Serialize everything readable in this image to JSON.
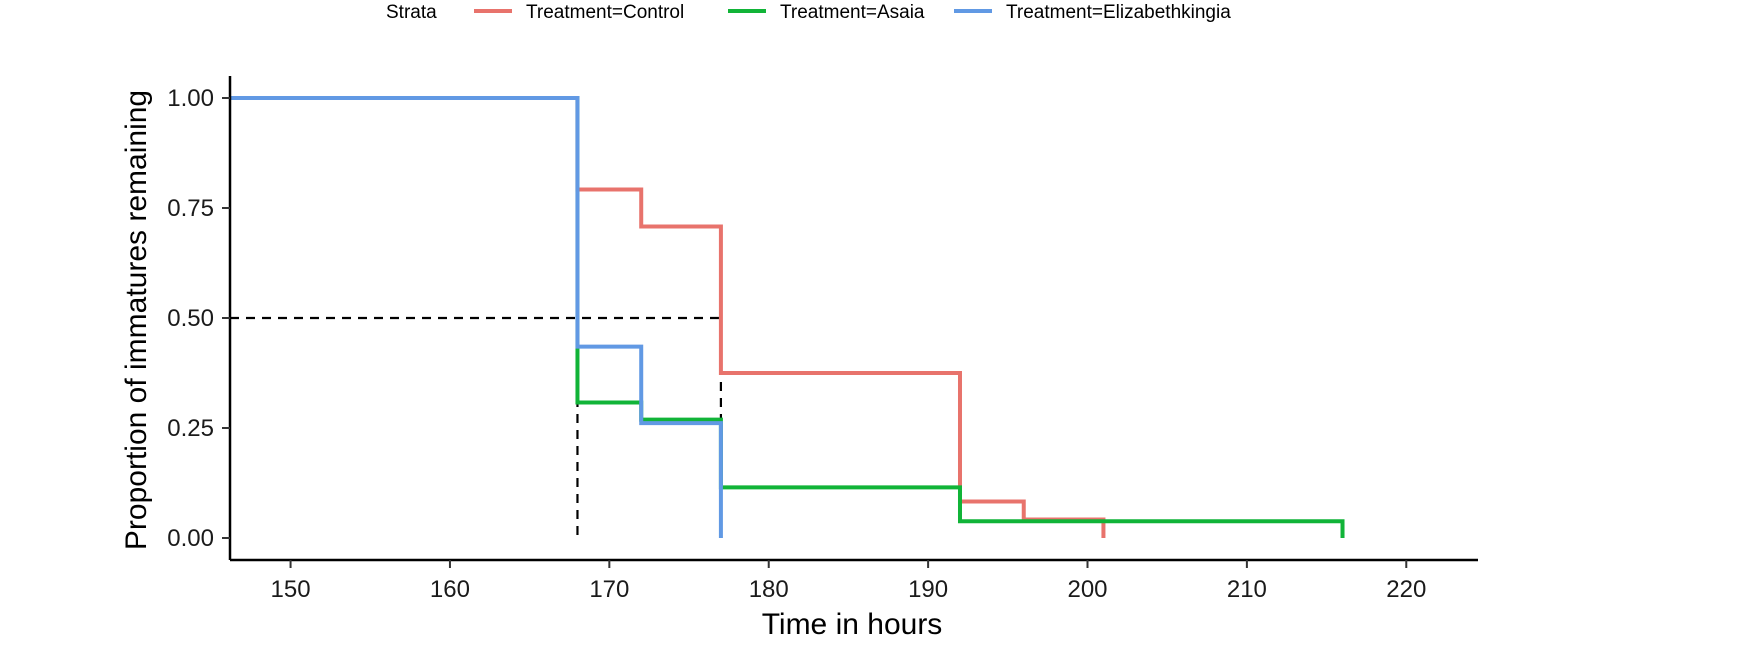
{
  "chart_data": {
    "type": "line",
    "xlabel": "Time in hours",
    "ylabel": "Proportion of immatures remaining",
    "xlim": [
      146.2,
      224.5
    ],
    "ylim": [
      -0.05,
      1.05
    ],
    "x_ticks": [
      150,
      160,
      170,
      180,
      190,
      200,
      210,
      220
    ],
    "y_ticks": [
      0,
      0.25,
      0.5,
      0.75,
      1.0
    ],
    "x_tick_labels": [
      "150",
      "160",
      "170",
      "180",
      "190",
      "200",
      "210",
      "220"
    ],
    "y_tick_labels": [
      "0.00",
      "0.25",
      "0.50",
      "0.75",
      "1.00"
    ],
    "grid": false,
    "legend": {
      "title": "Strata",
      "placement": "top",
      "entries": [
        "Treatment=Control",
        "Treatment=Asaia",
        "Treatment=Elizabethkingia"
      ]
    },
    "median_line": {
      "y": 0.5,
      "x_values": [
        168,
        177
      ],
      "style": "dashed",
      "color": "#000000"
    },
    "series": [
      {
        "name": "Treatment=Control",
        "color": "#E8736C",
        "x": [
          146.2,
          168,
          172,
          177,
          192,
          196,
          201
        ],
        "y": [
          1.0,
          0.792,
          0.708,
          0.375,
          0.083,
          0.042,
          0.0
        ]
      },
      {
        "name": "Treatment=Asaia",
        "color": "#11B438",
        "x": [
          146.2,
          168,
          172,
          177,
          192,
          216
        ],
        "y": [
          1.0,
          0.308,
          0.269,
          0.115,
          0.038,
          0.0
        ]
      },
      {
        "name": "Treatment=Elizabethkingia",
        "color": "#6199E4",
        "x": [
          146.2,
          168,
          172,
          177
        ],
        "y": [
          1.0,
          0.435,
          0.261,
          0.0
        ]
      }
    ]
  }
}
